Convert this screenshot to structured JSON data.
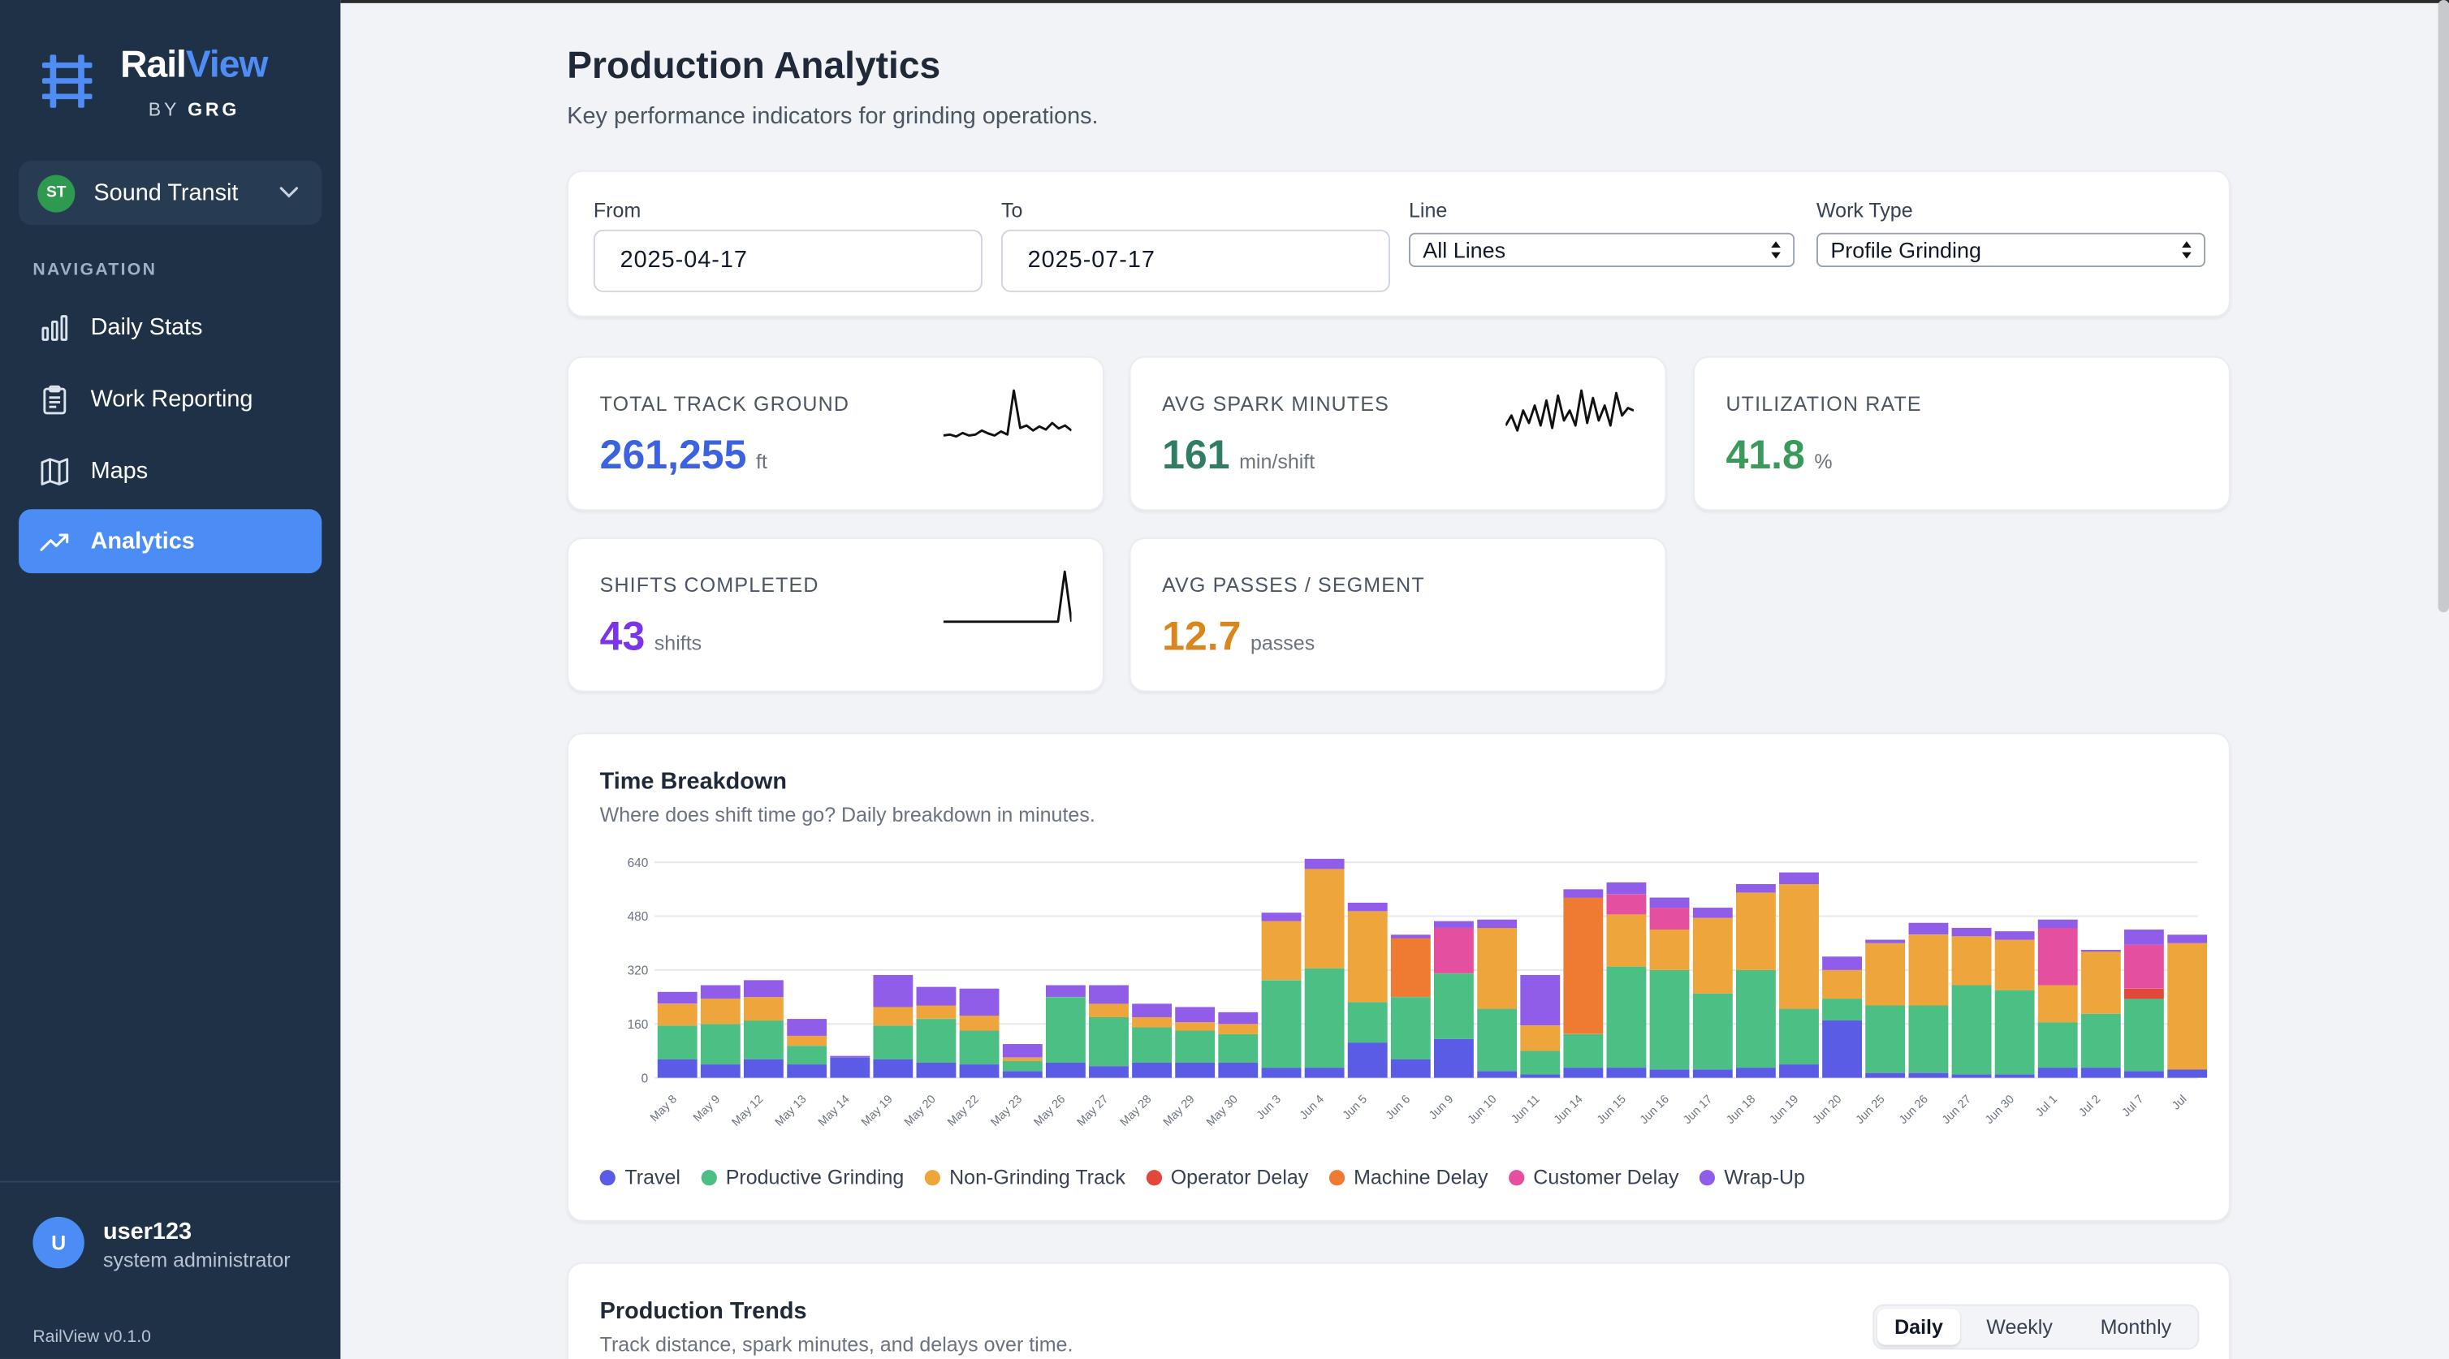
{
  "brand": {
    "name_a": "Rail",
    "name_b": "View",
    "by": "BY",
    "by_bold": "GRG"
  },
  "org": {
    "badge": "ST",
    "name": "Sound Transit"
  },
  "nav": {
    "title": "NAVIGATION",
    "items": [
      {
        "label": "Daily Stats",
        "icon": "bar-chart-icon"
      },
      {
        "label": "Work Reporting",
        "icon": "clipboard-icon"
      },
      {
        "label": "Maps",
        "icon": "map-icon"
      },
      {
        "label": "Analytics",
        "icon": "trending-up-icon",
        "active": true
      }
    ]
  },
  "user": {
    "initial": "U",
    "name": "user123",
    "role": "system administrator"
  },
  "version": "RailView v0.1.0",
  "page": {
    "title": "Production Analytics",
    "subtitle": "Key performance indicators for grinding operations."
  },
  "filters": {
    "from_label": "From",
    "from_value": "2025-04-17",
    "to_label": "To",
    "to_value": "2025-07-17",
    "line_label": "Line",
    "line_value": "All Lines",
    "work_label": "Work Type",
    "work_value": "Profile Grinding"
  },
  "kpis": {
    "track": {
      "label": "TOTAL TRACK GROUND",
      "value": "261,255",
      "unit": "ft",
      "color": "#3b63e0"
    },
    "spark": {
      "label": "AVG SPARK MINUTES",
      "value": "161",
      "unit": "min/shift",
      "color": "#2f7d63"
    },
    "util": {
      "label": "UTILIZATION RATE",
      "value": "41.8",
      "unit": "%",
      "color": "#3a9a5c"
    },
    "shifts": {
      "label": "SHIFTS COMPLETED",
      "value": "43",
      "unit": "shifts",
      "color": "#7b35e8"
    },
    "passes": {
      "label": "AVG PASSES / SEGMENT",
      "value": "12.7",
      "unit": "passes",
      "color": "#d9861c"
    }
  },
  "time_breakdown": {
    "title": "Time Breakdown",
    "subtitle": "Where does shift time go? Daily breakdown in minutes."
  },
  "production_trends": {
    "title": "Production Trends",
    "subtitle": "Track distance, spark minutes, and delays over time.",
    "tabs": [
      "Daily",
      "Weekly",
      "Monthly"
    ],
    "active_tab": "Daily"
  },
  "chart_data": {
    "type": "bar",
    "stacked": true,
    "ylim": [
      0,
      640
    ],
    "yticks": [
      0,
      160,
      320,
      480,
      640
    ],
    "categories": [
      "May 8",
      "May 9",
      "May 12",
      "May 13",
      "May 14",
      "May 19",
      "May 20",
      "May 22",
      "May 23",
      "May 26",
      "May 27",
      "May 28",
      "May 29",
      "May 30",
      "Jun 3",
      "Jun 4",
      "Jun 5",
      "Jun 6",
      "Jun 9",
      "Jun 10",
      "Jun 11",
      "Jun 14",
      "Jun 15",
      "Jun 16",
      "Jun 17",
      "Jun 18",
      "Jun 19",
      "Jun 20",
      "Jun 25",
      "Jun 26",
      "Jun 27",
      "Jun 30",
      "Jul 1",
      "Jul 2",
      "Jul 7",
      "Jul"
    ],
    "legend_placement": "bottom-left",
    "series": [
      {
        "name": "Travel",
        "color": "#5b5ce6",
        "values": [
          55,
          40,
          55,
          40,
          60,
          55,
          45,
          40,
          20,
          45,
          35,
          45,
          45,
          45,
          30,
          30,
          105,
          55,
          115,
          20,
          10,
          30,
          30,
          25,
          25,
          30,
          40,
          170,
          15,
          15,
          10,
          10,
          30,
          30,
          20,
          25
        ]
      },
      {
        "name": "Productive Grinding",
        "color": "#4cbf85",
        "values": [
          100,
          120,
          115,
          55,
          0,
          100,
          130,
          100,
          30,
          195,
          145,
          105,
          95,
          85,
          260,
          295,
          120,
          185,
          195,
          185,
          70,
          100,
          300,
          295,
          225,
          290,
          165,
          65,
          200,
          200,
          265,
          250,
          135,
          160,
          215,
          0
        ]
      },
      {
        "name": "Non-Grinding Track",
        "color": "#eea53b",
        "values": [
          65,
          75,
          70,
          30,
          0,
          55,
          40,
          45,
          10,
          0,
          40,
          30,
          25,
          30,
          175,
          295,
          270,
          0,
          0,
          240,
          75,
          0,
          155,
          120,
          225,
          230,
          370,
          85,
          185,
          210,
          145,
          150,
          110,
          185,
          0,
          375
        ]
      },
      {
        "name": "Operator Delay",
        "color": "#e0483c",
        "values": [
          0,
          0,
          0,
          0,
          0,
          0,
          0,
          0,
          0,
          0,
          0,
          0,
          0,
          0,
          0,
          0,
          0,
          0,
          0,
          0,
          0,
          0,
          0,
          0,
          0,
          0,
          0,
          0,
          0,
          0,
          0,
          0,
          0,
          0,
          30,
          0
        ]
      },
      {
        "name": "Machine Delay",
        "color": "#ef7a32",
        "values": [
          0,
          0,
          0,
          0,
          0,
          0,
          0,
          0,
          0,
          0,
          0,
          0,
          0,
          0,
          0,
          0,
          0,
          175,
          0,
          0,
          0,
          405,
          0,
          0,
          0,
          0,
          0,
          0,
          0,
          0,
          0,
          0,
          0,
          0,
          0,
          0
        ]
      },
      {
        "name": "Customer Delay",
        "color": "#e44fa0",
        "values": [
          0,
          0,
          0,
          0,
          0,
          0,
          0,
          0,
          0,
          0,
          0,
          0,
          0,
          0,
          0,
          0,
          0,
          0,
          135,
          0,
          0,
          0,
          60,
          65,
          0,
          0,
          0,
          0,
          0,
          0,
          0,
          0,
          170,
          0,
          130,
          0
        ]
      },
      {
        "name": "Wrap-Up",
        "color": "#8f5de8",
        "values": [
          35,
          40,
          50,
          50,
          5,
          95,
          55,
          80,
          40,
          35,
          55,
          40,
          45,
          35,
          25,
          30,
          25,
          10,
          20,
          25,
          150,
          25,
          35,
          30,
          30,
          25,
          35,
          40,
          10,
          35,
          25,
          25,
          25,
          5,
          45,
          25
        ]
      }
    ]
  },
  "sparklines": {
    "track": [
      0.1,
      0.12,
      0.08,
      0.15,
      0.1,
      0.12,
      0.2,
      0.14,
      0.1,
      0.18,
      0.12,
      1.0,
      0.25,
      0.3,
      0.2,
      0.28,
      0.22,
      0.35,
      0.24,
      0.3,
      0.2
    ],
    "spark": [
      0.3,
      0.5,
      0.2,
      0.6,
      0.35,
      0.7,
      0.3,
      0.8,
      0.25,
      0.9,
      0.4,
      0.6,
      0.3,
      1.0,
      0.35,
      0.85,
      0.4,
      0.7,
      0.3,
      0.95,
      0.5,
      0.65,
      0.6
    ],
    "shifts": [
      0,
      0,
      0,
      0,
      0,
      0,
      0,
      0,
      0,
      0,
      0,
      0,
      0,
      0,
      0,
      0,
      0,
      0,
      1.0,
      0
    ]
  }
}
